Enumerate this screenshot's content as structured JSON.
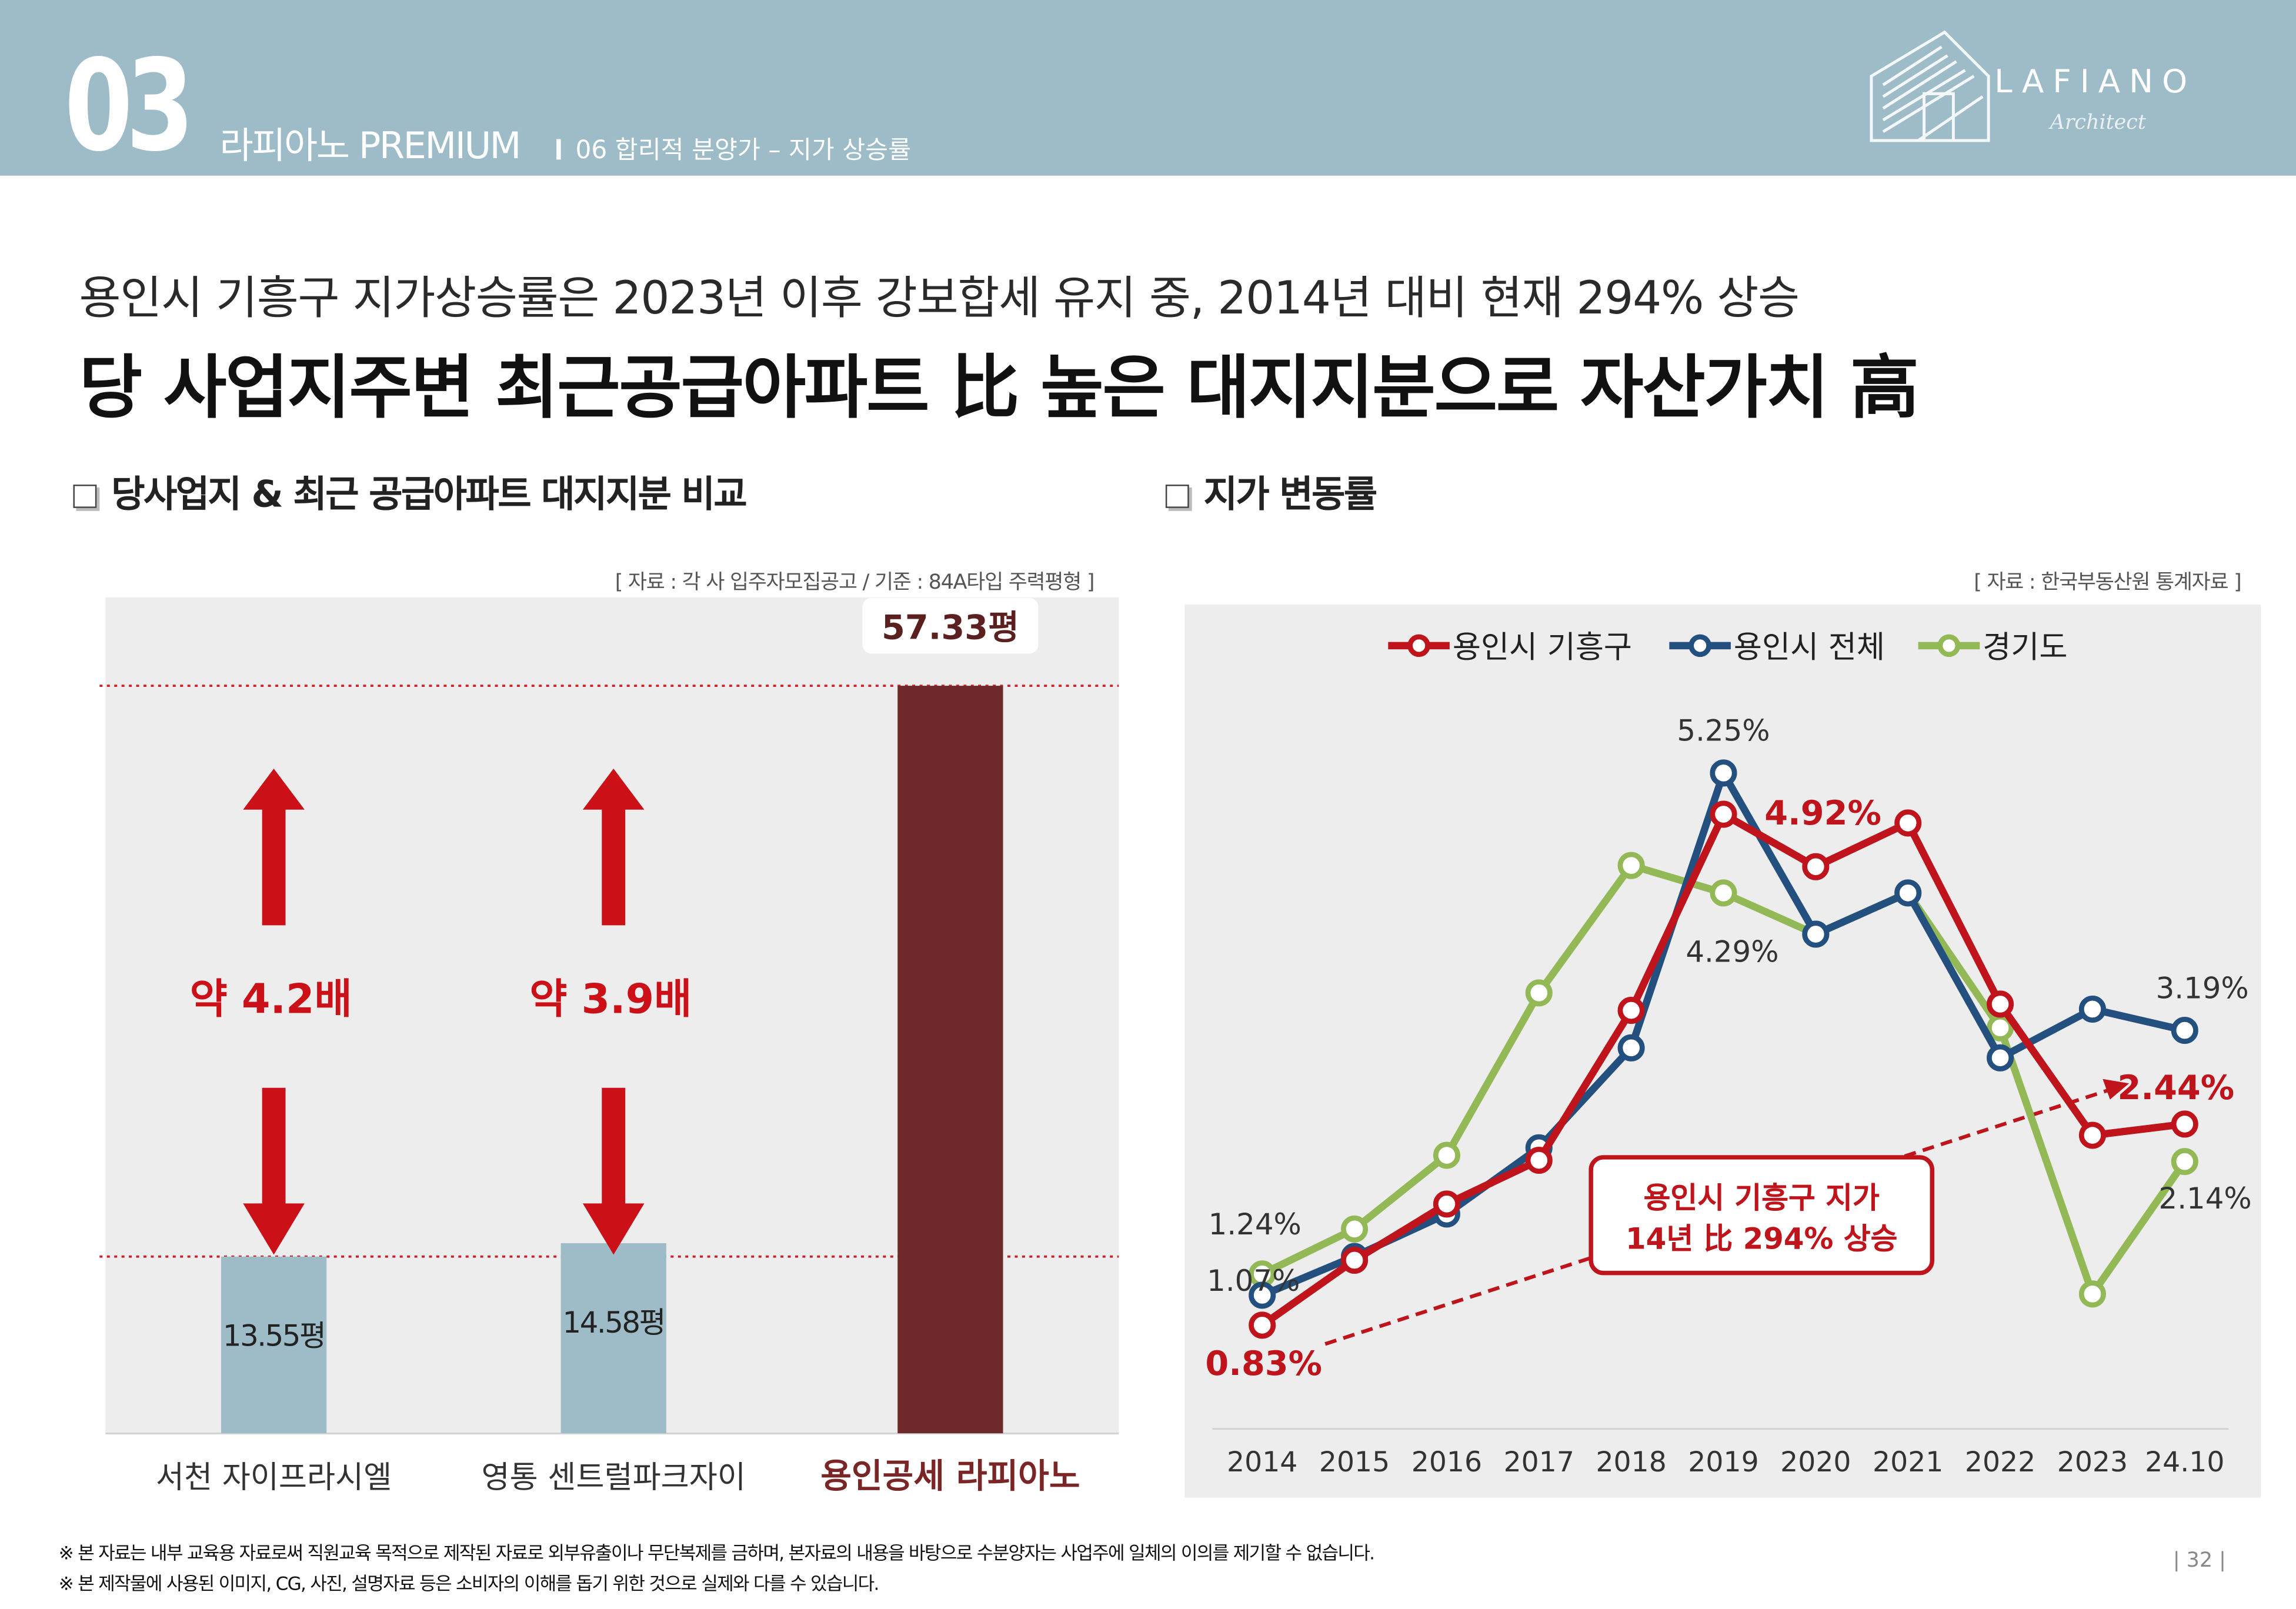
{
  "header": {
    "section_number": "03",
    "section_title": "라피아노 PREMIUM",
    "subsection": "06 합리적 분양가 – 지가 상승률",
    "brand": {
      "logo_text": "LAFIANO",
      "logo_tagline": "Architect"
    },
    "band_color": "#9dbcc7"
  },
  "headline": {
    "lead": "용인시 기흥구 지가상승률은 2023년 이후 강보합세 유지 중,  2014년 대비 현재 294% 상승",
    "main": "당 사업지주변 최근공급아파트 比 높은 대지지분으로 자산가치 高"
  },
  "left_section": {
    "title": "당사업지 & 최근 공급아파트 대지지분 비교",
    "source": "[ 자료 : 각 사 입주자모집공고 / 기준 : 84A타입 주력평형 ]",
    "multipliers": [
      "약 4.2배",
      "약 3.9배"
    ]
  },
  "right_section": {
    "title": "지가 변동률",
    "source": "[ 자료 : 한국부동산원 통계자료 ]",
    "callout_line1": "용인시 기흥구 지가",
    "callout_line2": "14년 比 294% 상승"
  },
  "footnotes": [
    "※ 본 자료는 내부 교육용 자료로써 직원교육 목적으로 제작된 자료로 외부유출이나 무단복제를 금하며, 본자료의 내용을 바탕으로 수분양자는 사업주에 일체의 이의를 제기할 수 없습니다.",
    "※ 본 제작물에 사용된 이미지, CG, 사진, 설명자료 등은 소비자의 이해를 돕기 위한 것으로 실제와 다를 수 있습니다."
  ],
  "page_number": "| 32 |",
  "chart_data": [
    {
      "type": "bar",
      "categories": [
        "서천 자이프라시엘",
        "영통 센트럴파크자이",
        "용인공세 라피아노"
      ],
      "values": [
        13.55,
        14.58,
        57.33
      ],
      "value_labels": [
        "13.55평",
        "14.58평",
        "57.33평"
      ],
      "unit": "평",
      "ylim": [
        0,
        64
      ],
      "colors": [
        "#9dbcc7",
        "#9dbcc7",
        "#6e2a2a"
      ],
      "highlight_category": "용인공세 라피아노",
      "reference_lines": [
        57.33,
        13.55
      ],
      "annotations": [
        "약 4.2배",
        "약 3.9배"
      ]
    },
    {
      "type": "line",
      "x": [
        "2014",
        "2015",
        "2016",
        "2017",
        "2018",
        "2019",
        "2020",
        "2021",
        "2022",
        "2023",
        "24.10"
      ],
      "ylim": [
        0,
        6.0
      ],
      "series": [
        {
          "name": "용인시 기흥구",
          "color": "#c0141c",
          "values": [
            0.83,
            1.35,
            1.8,
            2.15,
            3.35,
            4.92,
            4.5,
            4.85,
            3.4,
            2.35,
            2.44
          ]
        },
        {
          "name": "용인시 전체",
          "color": "#24507f",
          "values": [
            1.07,
            1.38,
            1.72,
            2.25,
            3.05,
            5.25,
            3.96,
            4.29,
            2.97,
            3.36,
            3.19
          ]
        },
        {
          "name": "경기도",
          "color": "#93b957",
          "values": [
            1.24,
            1.6,
            2.19,
            3.49,
            4.51,
            4.29,
            3.96,
            4.29,
            3.21,
            1.08,
            2.14
          ]
        }
      ],
      "data_labels": [
        {
          "text": "5.25%",
          "series": "용인시 전체",
          "x": "2019"
        },
        {
          "text": "4.92%",
          "series": "용인시 기흥구",
          "x": "2019"
        },
        {
          "text": "4.29%",
          "series": "경기도",
          "x": "2019"
        },
        {
          "text": "3.19%",
          "series": "용인시 전체",
          "x": "24.10"
        },
        {
          "text": "2.44%",
          "series": "용인시 기흥구",
          "x": "24.10"
        },
        {
          "text": "2.14%",
          "series": "경기도",
          "x": "24.10"
        },
        {
          "text": "1.24%",
          "series": "경기도",
          "x": "2014"
        },
        {
          "text": "1.07%",
          "series": "용인시 전체",
          "x": "2014"
        },
        {
          "text": "0.83%",
          "series": "용인시 기흥구",
          "x": "2014"
        }
      ],
      "legend": "top"
    }
  ]
}
